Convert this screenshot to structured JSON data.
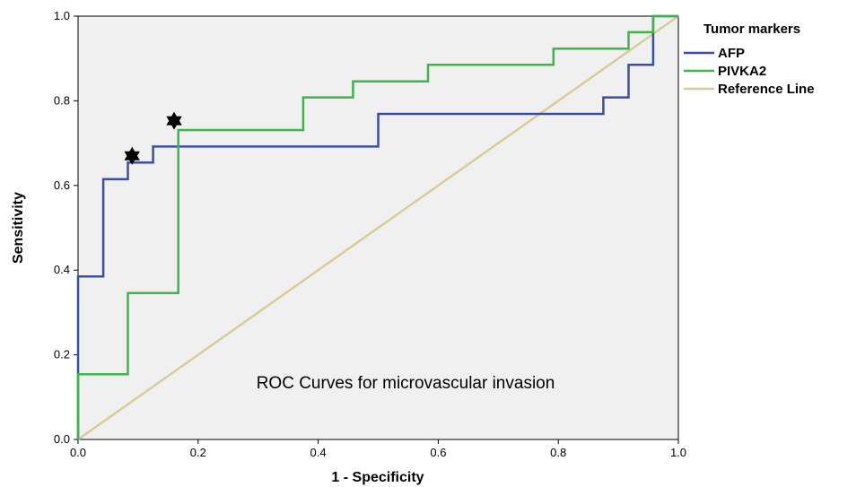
{
  "chart_data": {
    "type": "line",
    "xlabel": "1 - Specificity",
    "ylabel": "Sensitivity",
    "xlim": [
      0,
      1
    ],
    "ylim": [
      0,
      1
    ],
    "x_ticks": [
      "0.0",
      "0.2",
      "0.4",
      "0.6",
      "0.8",
      "1.0"
    ],
    "y_ticks": [
      "0.0",
      "0.2",
      "0.4",
      "0.6",
      "0.8",
      "1.0"
    ],
    "legend": {
      "title": "Tumor markers",
      "placement": "top-right, outside plot"
    },
    "annotation": "ROC Curves for microvascular invasion",
    "plot_background": "#f0f0f0",
    "series": [
      {
        "name": "AFP",
        "color": "#3a4fa3",
        "x": [
          0.0,
          0.0,
          0.042,
          0.042,
          0.083,
          0.083,
          0.083,
          0.125,
          0.125,
          0.5,
          0.5,
          0.875,
          0.875,
          0.917,
          0.917,
          0.958,
          0.958,
          1.0
        ],
        "y": [
          0.0,
          0.385,
          0.385,
          0.615,
          0.615,
          0.654,
          0.654,
          0.654,
          0.692,
          0.692,
          0.769,
          0.769,
          0.808,
          0.808,
          0.885,
          0.885,
          1.0,
          1.0
        ]
      },
      {
        "name": "PIVKA2",
        "color": "#3cb54a",
        "x": [
          0.0,
          0.0,
          0.083,
          0.083,
          0.167,
          0.167,
          0.375,
          0.375,
          0.458,
          0.458,
          0.583,
          0.583,
          0.792,
          0.792,
          0.917,
          0.917,
          0.958,
          0.958,
          1.0
        ],
        "y": [
          0.0,
          0.154,
          0.154,
          0.346,
          0.346,
          0.731,
          0.731,
          0.808,
          0.808,
          0.846,
          0.846,
          0.885,
          0.885,
          0.923,
          0.923,
          0.962,
          0.962,
          1.0,
          1.0
        ]
      },
      {
        "name": "Reference Line",
        "color": "#d8cc98",
        "x": [
          0.0,
          1.0
        ],
        "y": [
          0.0,
          1.0
        ]
      }
    ],
    "markers": [
      {
        "series": "AFP",
        "x": 0.09,
        "y": 0.67,
        "symbol": "star"
      },
      {
        "series": "PIVKA2",
        "x": 0.16,
        "y": 0.753,
        "symbol": "star"
      }
    ]
  }
}
